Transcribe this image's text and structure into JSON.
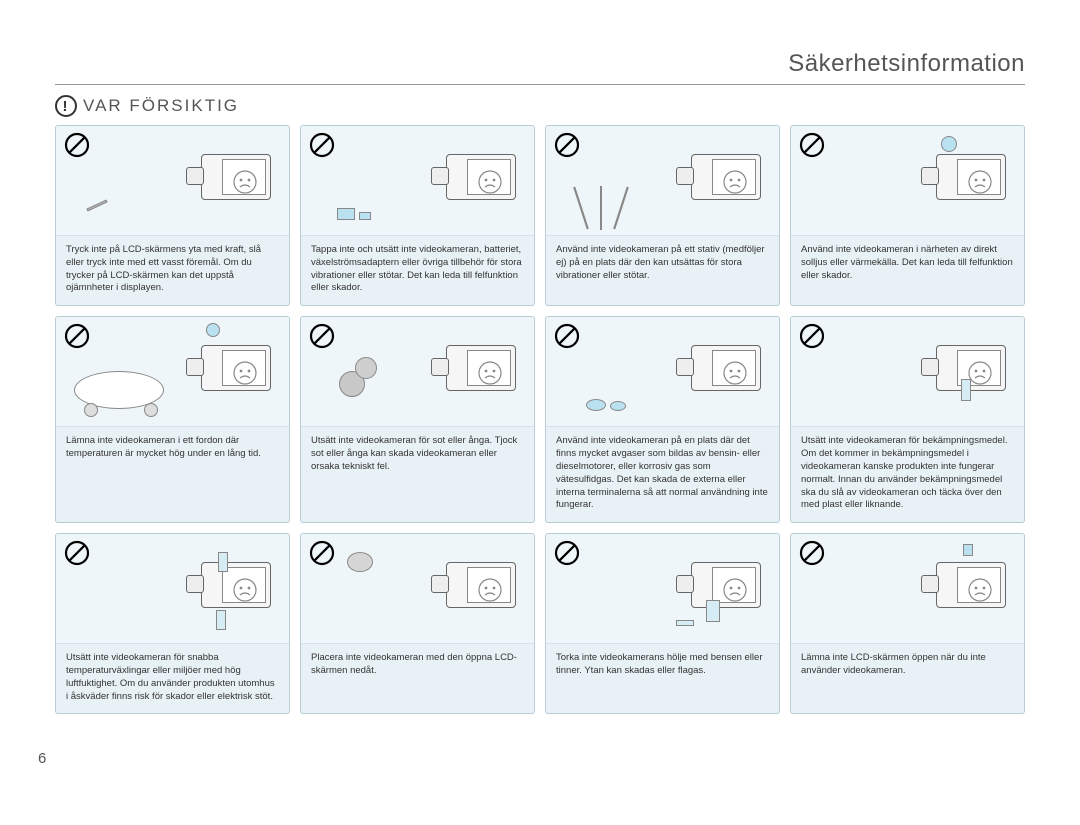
{
  "page": {
    "title": "Säkerhetsinformation",
    "caution_label": "VAR FÖRSIKTIG",
    "caution_glyph": "!",
    "page_number": "6"
  },
  "colors": {
    "card_bg": "#e8f1f5",
    "card_border": "#b8cdd8",
    "rule": "#999999",
    "text": "#333333",
    "title": "#555555"
  },
  "cards": [
    {
      "caption": "Tryck inte på LCD-skärmens yta med kraft, slå eller tryck inte med ett vasst föremål. Om du trycker på LCD-skärmen kan det uppstå ojämnheter i displayen."
    },
    {
      "caption": "Tappa inte och utsätt inte videokameran, batteriet, växelströmsadaptern eller övriga tillbehör för stora vibrationer eller stötar. Det kan leda till felfunktion eller skador."
    },
    {
      "caption": "Använd inte videokameran på ett stativ (medföljer ej) på en plats där den kan utsättas för stora vibrationer eller stötar."
    },
    {
      "caption": "Använd inte videokameran i närheten av direkt solljus eller värmekälla. Det kan leda till felfunktion eller skador."
    },
    {
      "caption": "Lämna inte videokameran i ett fordon där temperaturen är mycket hög under en lång tid."
    },
    {
      "caption": "Utsätt inte videokameran för sot eller ånga. Tjock sot eller ånga kan skada videokameran eller orsaka tekniskt fel."
    },
    {
      "caption": "Använd inte videokameran på en plats där det finns mycket avgaser som bildas av bensin- eller dieselmotorer, eller korrosiv gas som vätesulfidgas. Det kan skada de externa eller interna terminalerna så att normal användning inte fungerar."
    },
    {
      "caption": "Utsätt inte videokameran för bekämpningsmedel. Om det kommer in bekämpningsmedel i videokameran kanske produkten inte fungerar normalt. Innan du använder bekämpningsmedel ska du slå av videokameran och täcka över den med plast eller liknande."
    },
    {
      "caption": "Utsätt inte videokameran för snabba temperaturväxlingar eller miljöer med hög luftfuktighet. Om du använder produkten utomhus i åskväder finns risk för skador eller elektrisk stöt."
    },
    {
      "caption": "Placera inte videokameran med den öppna LCD-skärmen nedåt."
    },
    {
      "caption": "Torka inte videokamerans hölje med bensen eller tinner. Ytan kan skadas eller flagas."
    },
    {
      "caption": "Lämna inte LCD-skärmen öppen när du inte använder videokameran."
    }
  ]
}
